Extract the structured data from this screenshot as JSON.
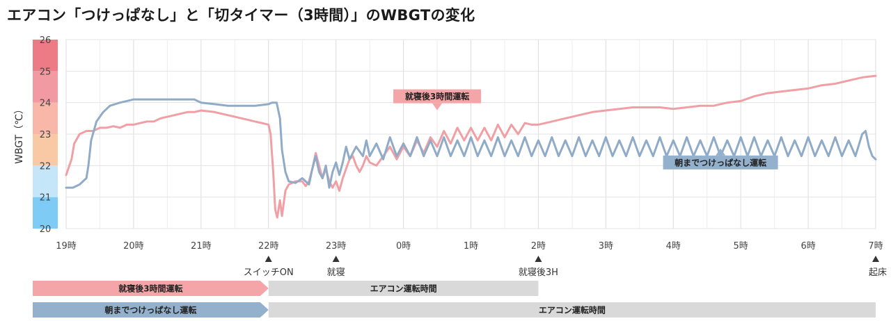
{
  "title": "エアコン「つけっぱなし」と「切タイマー（3時間）」のWBGTの変化",
  "chart_data": {
    "type": "line",
    "ylabel": "WBGT（℃）",
    "ylim": [
      20,
      26
    ],
    "y_ticks": [
      "20",
      "21",
      "22",
      "23",
      "24",
      "25",
      "26"
    ],
    "x_ticks": [
      "19時",
      "20時",
      "21時",
      "22時",
      "23時",
      "0時",
      "1時",
      "2時",
      "3時",
      "4時",
      "5時",
      "6時",
      "7時"
    ],
    "x_unit": "hours since 19時",
    "band_colors": [
      "#7ecbf5",
      "#c4e6f8",
      "#f9c9a6",
      "#f8b7a8",
      "#f29aa1",
      "#ec7b85"
    ],
    "series": [
      {
        "name": "就寝後3時間運転",
        "color": "#f0a0a5",
        "points": [
          [
            0,
            21.7
          ],
          [
            0.08,
            22.2
          ],
          [
            0.12,
            22.7
          ],
          [
            0.2,
            23
          ],
          [
            0.3,
            23.1
          ],
          [
            0.4,
            23.1
          ],
          [
            0.5,
            23.2
          ],
          [
            0.6,
            23.2
          ],
          [
            0.7,
            23.25
          ],
          [
            0.8,
            23.2
          ],
          [
            0.9,
            23.3
          ],
          [
            1.0,
            23.3
          ],
          [
            1.1,
            23.35
          ],
          [
            1.2,
            23.4
          ],
          [
            1.3,
            23.4
          ],
          [
            1.4,
            23.5
          ],
          [
            1.6,
            23.6
          ],
          [
            1.8,
            23.7
          ],
          [
            1.9,
            23.7
          ],
          [
            2.0,
            23.75
          ],
          [
            2.2,
            23.7
          ],
          [
            2.4,
            23.6
          ],
          [
            2.6,
            23.5
          ],
          [
            2.7,
            23.45
          ],
          [
            2.8,
            23.4
          ],
          [
            2.9,
            23.35
          ],
          [
            3.0,
            23.3
          ],
          [
            3.03,
            23.0
          ],
          [
            3.07,
            21.8
          ],
          [
            3.1,
            20.6
          ],
          [
            3.13,
            20.35
          ],
          [
            3.17,
            20.9
          ],
          [
            3.2,
            20.4
          ],
          [
            3.25,
            21.2
          ],
          [
            3.3,
            21.4
          ],
          [
            3.4,
            21.5
          ],
          [
            3.5,
            21.5
          ],
          [
            3.55,
            21.35
          ],
          [
            3.6,
            21.5
          ],
          [
            3.65,
            21.9
          ],
          [
            3.7,
            22.4
          ],
          [
            3.75,
            22.0
          ],
          [
            3.8,
            21.6
          ],
          [
            3.85,
            21.9
          ],
          [
            3.9,
            21.5
          ],
          [
            3.95,
            21.3
          ],
          [
            4.0,
            21.5
          ],
          [
            4.05,
            21.2
          ],
          [
            4.1,
            21.6
          ],
          [
            4.15,
            21.9
          ],
          [
            4.2,
            22.2
          ],
          [
            4.25,
            22.3
          ],
          [
            4.3,
            22.0
          ],
          [
            4.35,
            21.8
          ],
          [
            4.4,
            22.0
          ],
          [
            4.45,
            22.3
          ],
          [
            4.5,
            22.1
          ],
          [
            4.6,
            22.0
          ],
          [
            4.7,
            22.3
          ],
          [
            4.8,
            22.6
          ],
          [
            4.9,
            22.2
          ],
          [
            5.0,
            22.6
          ],
          [
            5.1,
            22.3
          ],
          [
            5.2,
            22.8
          ],
          [
            5.3,
            22.4
          ],
          [
            5.4,
            22.9
          ],
          [
            5.5,
            22.6
          ],
          [
            5.6,
            23.1
          ],
          [
            5.7,
            22.7
          ],
          [
            5.8,
            23.2
          ],
          [
            5.9,
            22.8
          ],
          [
            6.0,
            23.2
          ],
          [
            6.1,
            22.8
          ],
          [
            6.2,
            23.2
          ],
          [
            6.3,
            22.8
          ],
          [
            6.4,
            23.3
          ],
          [
            6.5,
            22.9
          ],
          [
            6.6,
            23.3
          ],
          [
            6.7,
            23.0
          ],
          [
            6.8,
            23.35
          ],
          [
            6.9,
            23.3
          ],
          [
            7.0,
            23.3
          ],
          [
            7.2,
            23.4
          ],
          [
            7.4,
            23.5
          ],
          [
            7.6,
            23.6
          ],
          [
            7.8,
            23.7
          ],
          [
            8.0,
            23.75
          ],
          [
            8.2,
            23.8
          ],
          [
            8.4,
            23.85
          ],
          [
            8.6,
            23.85
          ],
          [
            8.8,
            23.85
          ],
          [
            9.0,
            23.8
          ],
          [
            9.2,
            23.85
          ],
          [
            9.4,
            23.9
          ],
          [
            9.6,
            23.9
          ],
          [
            9.8,
            24.0
          ],
          [
            10.0,
            24.05
          ],
          [
            10.2,
            24.2
          ],
          [
            10.4,
            24.3
          ],
          [
            10.6,
            24.35
          ],
          [
            10.8,
            24.4
          ],
          [
            11.0,
            24.45
          ],
          [
            11.2,
            24.55
          ],
          [
            11.4,
            24.6
          ],
          [
            11.6,
            24.7
          ],
          [
            11.8,
            24.8
          ],
          [
            12.0,
            24.85
          ]
        ]
      },
      {
        "name": "朝までつけっぱなし運転",
        "color": "#8fabc8",
        "points": [
          [
            0,
            21.3
          ],
          [
            0.1,
            21.3
          ],
          [
            0.2,
            21.4
          ],
          [
            0.25,
            21.5
          ],
          [
            0.3,
            21.6
          ],
          [
            0.33,
            22.0
          ],
          [
            0.37,
            22.8
          ],
          [
            0.45,
            23.4
          ],
          [
            0.55,
            23.7
          ],
          [
            0.65,
            23.9
          ],
          [
            0.8,
            24.0
          ],
          [
            0.9,
            24.05
          ],
          [
            1.0,
            24.1
          ],
          [
            1.5,
            24.1
          ],
          [
            1.9,
            24.1
          ],
          [
            2.0,
            24.0
          ],
          [
            2.2,
            23.95
          ],
          [
            2.4,
            23.9
          ],
          [
            2.6,
            23.9
          ],
          [
            2.8,
            23.9
          ],
          [
            3.0,
            23.95
          ],
          [
            3.05,
            24.0
          ],
          [
            3.12,
            24.0
          ],
          [
            3.17,
            23.5
          ],
          [
            3.2,
            22.5
          ],
          [
            3.25,
            21.8
          ],
          [
            3.3,
            21.5
          ],
          [
            3.4,
            21.45
          ],
          [
            3.5,
            21.6
          ],
          [
            3.6,
            21.4
          ],
          [
            3.65,
            21.9
          ],
          [
            3.7,
            22.3
          ],
          [
            3.75,
            21.8
          ],
          [
            3.8,
            21.6
          ],
          [
            3.85,
            22.0
          ],
          [
            3.9,
            21.3
          ],
          [
            3.95,
            21.8
          ],
          [
            4.0,
            22.1
          ],
          [
            4.05,
            21.7
          ],
          [
            4.1,
            22.1
          ],
          [
            4.15,
            22.6
          ],
          [
            4.2,
            22.2
          ],
          [
            4.3,
            22.6
          ],
          [
            4.4,
            22.3
          ],
          [
            4.45,
            22.8
          ],
          [
            4.5,
            22.3
          ],
          [
            4.6,
            22.7
          ],
          [
            4.7,
            22.2
          ],
          [
            4.8,
            22.9
          ],
          [
            4.9,
            22.3
          ],
          [
            5.0,
            22.7
          ],
          [
            5.1,
            22.3
          ],
          [
            5.2,
            22.9
          ],
          [
            5.3,
            22.3
          ],
          [
            5.4,
            22.8
          ],
          [
            5.5,
            22.3
          ],
          [
            5.6,
            22.9
          ],
          [
            5.7,
            22.3
          ],
          [
            5.8,
            22.8
          ],
          [
            5.9,
            22.3
          ],
          [
            6.0,
            22.9
          ],
          [
            6.1,
            22.3
          ],
          [
            6.2,
            22.8
          ],
          [
            6.3,
            22.3
          ],
          [
            6.4,
            22.9
          ],
          [
            6.5,
            22.3
          ],
          [
            6.6,
            22.8
          ],
          [
            6.7,
            22.3
          ],
          [
            6.8,
            22.9
          ],
          [
            6.9,
            22.3
          ],
          [
            7.0,
            22.8
          ],
          [
            7.1,
            22.3
          ],
          [
            7.2,
            22.9
          ],
          [
            7.3,
            22.3
          ],
          [
            7.4,
            22.8
          ],
          [
            7.5,
            22.3
          ],
          [
            7.6,
            22.9
          ],
          [
            7.7,
            22.3
          ],
          [
            7.8,
            22.8
          ],
          [
            7.9,
            22.3
          ],
          [
            8.0,
            22.9
          ],
          [
            8.1,
            22.3
          ],
          [
            8.2,
            22.8
          ],
          [
            8.3,
            22.3
          ],
          [
            8.4,
            22.9
          ],
          [
            8.5,
            22.3
          ],
          [
            8.6,
            22.8
          ],
          [
            8.7,
            22.3
          ],
          [
            8.8,
            22.9
          ],
          [
            8.9,
            22.3
          ],
          [
            9.0,
            22.8
          ],
          [
            9.1,
            22.3
          ],
          [
            9.2,
            22.9
          ],
          [
            9.3,
            22.3
          ],
          [
            9.4,
            22.8
          ],
          [
            9.5,
            22.3
          ],
          [
            9.6,
            22.9
          ],
          [
            9.7,
            22.3
          ],
          [
            9.8,
            22.8
          ],
          [
            9.9,
            22.3
          ],
          [
            10.0,
            22.9
          ],
          [
            10.1,
            22.3
          ],
          [
            10.2,
            22.9
          ],
          [
            10.3,
            22.3
          ],
          [
            10.4,
            22.8
          ],
          [
            10.5,
            22.3
          ],
          [
            10.6,
            22.9
          ],
          [
            10.7,
            22.3
          ],
          [
            10.8,
            22.8
          ],
          [
            10.9,
            22.3
          ],
          [
            11.0,
            22.9
          ],
          [
            11.1,
            22.3
          ],
          [
            11.2,
            22.8
          ],
          [
            11.3,
            22.3
          ],
          [
            11.4,
            22.9
          ],
          [
            11.5,
            22.3
          ],
          [
            11.6,
            22.8
          ],
          [
            11.7,
            22.3
          ],
          [
            11.8,
            23.0
          ],
          [
            11.85,
            23.1
          ],
          [
            11.9,
            22.6
          ],
          [
            11.95,
            22.3
          ],
          [
            12.0,
            22.2
          ]
        ]
      }
    ],
    "callouts": [
      {
        "text": "就寝後3時間運転",
        "x": 5.5,
        "y": 24.2,
        "color": "#f4a5a8"
      },
      {
        "text": "朝までつけっぱなし運転",
        "x": 9.7,
        "y": 22.1,
        "color": "#93b0cc"
      }
    ],
    "events": [
      {
        "x": 3,
        "label": "スイッチON"
      },
      {
        "x": 4,
        "label": "就寝"
      },
      {
        "x": 7,
        "label": "就寝後3H"
      },
      {
        "x": 12,
        "label": "起床"
      }
    ],
    "timeline": [
      {
        "label": "就寝後3時間運転",
        "color": "#f4a5a8",
        "bar_label": "エアコン運転時間",
        "bar_start": 3,
        "bar_end": 7
      },
      {
        "label": "朝までつけっぱなし運転",
        "color": "#93b0cc",
        "bar_label": "エアコン運転時間",
        "bar_start": 3,
        "bar_end": 12
      }
    ]
  }
}
